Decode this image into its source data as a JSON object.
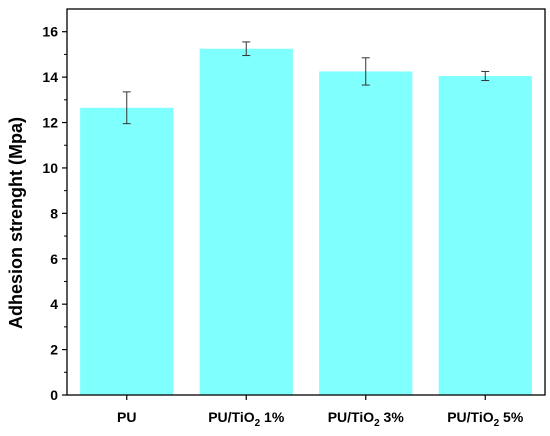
{
  "chart_data": {
    "type": "bar",
    "categories": [
      {
        "main": "PU",
        "sub": "",
        "suffix": ""
      },
      {
        "main": "PU/TiO",
        "sub": "2",
        "suffix": " 1%"
      },
      {
        "main": "PU/TiO",
        "sub": "2",
        "suffix": " 3%"
      },
      {
        "main": "PU/TiO",
        "sub": "2",
        "suffix": " 5%"
      }
    ],
    "values": [
      12.65,
      15.25,
      14.25,
      14.05
    ],
    "errors": [
      0.7,
      0.3,
      0.6,
      0.2
    ],
    "ylabel": "Adhesion strenght (Mpa)",
    "ylim": [
      0,
      17
    ],
    "yticks": [
      0,
      2,
      4,
      6,
      8,
      10,
      12,
      14,
      16
    ],
    "bar_color": "#80ffff",
    "grid": false
  }
}
